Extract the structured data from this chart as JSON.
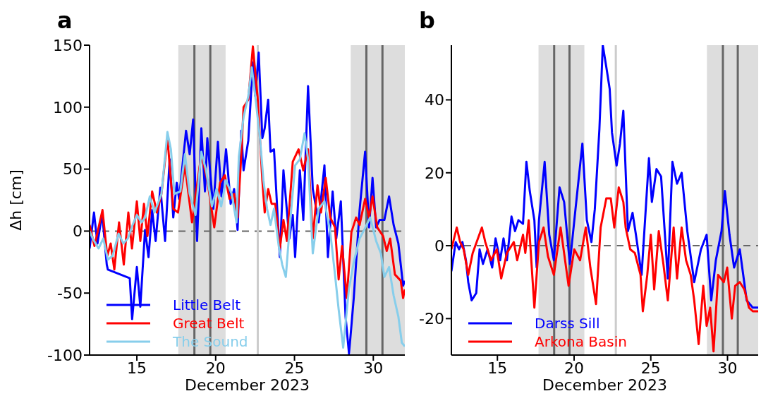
{
  "chart_data": [
    {
      "type": "line",
      "title": "a",
      "xlabel": "December 2023",
      "ylabel": "Δh [cm]",
      "xlim": [
        12,
        32
      ],
      "xticks": [
        15,
        20,
        25,
        30
      ],
      "ylim": [
        -100,
        150
      ],
      "yticks": [
        -100,
        -50,
        0,
        50,
        100,
        150
      ],
      "grid": false,
      "legend": "bottom left",
      "marker": "none",
      "line_style": "solid",
      "bands": [
        {
          "axis": "x",
          "from": 17.63,
          "to": 20.63,
          "color": "#dddddd"
        },
        {
          "axis": "x",
          "from": 28.57,
          "to": 32,
          "color": "#dddddd"
        }
      ],
      "ref_lines": [
        {
          "axis": "y",
          "value": 0,
          "color": "#666666",
          "line_style": "dashed"
        },
        {
          "axis": "x",
          "value": 18.65,
          "color": "#666666",
          "line_style": "solid"
        },
        {
          "axis": "x",
          "value": 19.66,
          "color": "#666666",
          "line_style": "solid"
        },
        {
          "axis": "x",
          "value": 22.67,
          "color": "#cccccc",
          "line_style": "solid"
        },
        {
          "axis": "x",
          "value": 29.56,
          "color": "#666666",
          "line_style": "solid"
        },
        {
          "axis": "x",
          "value": 30.58,
          "color": "#666666",
          "line_style": "solid"
        }
      ],
      "series": [
        {
          "name": "Little Belt",
          "color": "#0000ff",
          "x": [
            12,
            12.28,
            12.5,
            12.8,
            13.09,
            13.16,
            14.55,
            14.7,
            15,
            15.22,
            15.52,
            15.74,
            15.97,
            16.19,
            16.49,
            16.79,
            17.08,
            17.31,
            17.53,
            17.68,
            18.12,
            18.35,
            18.57,
            18.82,
            19.09,
            19.32,
            19.47,
            19.85,
            20.14,
            20.37,
            20.66,
            20.95,
            21.17,
            21.39,
            21.62,
            21.77,
            22.07,
            22.36,
            22.51,
            22.73,
            22.96,
            23.11,
            23.33,
            23.48,
            23.7,
            24.07,
            24.3,
            24.67,
            24.89,
            25.04,
            25.34,
            25.56,
            25.86,
            26.16,
            26.53,
            26.9,
            27.12,
            27.42,
            27.65,
            27.94,
            28.24,
            28.46,
            28.76,
            29.13,
            29.48,
            29.73,
            29.95,
            30.18,
            30.4,
            30.7,
            31,
            31.29,
            31.59,
            31.89,
            32
          ],
          "values": [
            -14,
            15,
            -10,
            14,
            -27,
            -31,
            -38,
            -71,
            -29,
            -61,
            1,
            -21,
            17,
            -8,
            35,
            -8,
            58,
            11,
            39,
            26,
            81,
            62,
            90,
            -8,
            83,
            32,
            75,
            18,
            72,
            28,
            66,
            22,
            34,
            1,
            81,
            49,
            73,
            136,
            109,
            144,
            75,
            83,
            106,
            64,
            66,
            -21,
            49,
            -6,
            13,
            -21,
            49,
            9,
            117,
            34,
            7,
            53,
            -21,
            32,
            -6,
            24,
            -69,
            -99,
            -54,
            17,
            64,
            3,
            43,
            3,
            9,
            9,
            28,
            5,
            -10,
            -44,
            -40
          ]
        },
        {
          "name": "Great Belt",
          "color": "#ff0000",
          "x": [
            12,
            12.31,
            12.82,
            13.12,
            13.34,
            13.57,
            13.87,
            14.17,
            14.46,
            14.69,
            15,
            15.22,
            15.45,
            15.67,
            15.97,
            16.27,
            16.56,
            16.94,
            17.31,
            17.61,
            18.05,
            18.5,
            19.09,
            19.47,
            19.91,
            20.28,
            20.58,
            20.88,
            21.17,
            21.39,
            21.62,
            21.77,
            22.07,
            22.36,
            22.66,
            22.96,
            23.11,
            23.33,
            23.55,
            23.78,
            24.07,
            24.3,
            24.52,
            24.89,
            25.26,
            25.56,
            25.86,
            26.16,
            26.46,
            26.68,
            26.98,
            27.27,
            27.57,
            27.8,
            28.02,
            28.32,
            28.61,
            28.91,
            29.13,
            29.48,
            29.73,
            29.95,
            30.25,
            30.62,
            30.85,
            31.07,
            31.37,
            31.74,
            31.89,
            32
          ],
          "values": [
            5,
            -12,
            17,
            -20,
            -10,
            -31,
            7,
            -27,
            15,
            -14,
            24,
            -8,
            22,
            -4,
            32,
            15,
            30,
            75,
            18,
            15,
            53,
            7,
            62,
            41,
            3,
            39,
            45,
            26,
            30,
            11,
            60,
            100,
            106,
            149,
            108,
            41,
            15,
            34,
            22,
            22,
            -14,
            9,
            -8,
            56,
            66,
            49,
            66,
            -6,
            37,
            15,
            43,
            11,
            3,
            -39,
            -12,
            -54,
            -1,
            11,
            5,
            26,
            11,
            28,
            3,
            -4,
            -16,
            -6,
            -35,
            -40,
            -54,
            -47
          ]
        },
        {
          "name": "The Sound",
          "color": "#87ceeb",
          "x": [
            12,
            12.2,
            12.57,
            12.87,
            13.16,
            13.46,
            13.84,
            14.14,
            14.43,
            14.73,
            15,
            15.3,
            15.52,
            15.82,
            16.12,
            16.56,
            16.94,
            17.16,
            17.38,
            17.76,
            18.05,
            18.35,
            18.72,
            19.09,
            19.39,
            19.76,
            20.06,
            20.35,
            20.65,
            21.02,
            21.32,
            21.47,
            21.77,
            22.07,
            22.29,
            22.51,
            22.81,
            23.03,
            23.26,
            23.48,
            23.7,
            24,
            24.22,
            24.45,
            24.67,
            25.04,
            25.34,
            25.64,
            25.86,
            26.16,
            26.53,
            26.9,
            27.27,
            27.57,
            27.8,
            28.09,
            28.46,
            28.76,
            29.13,
            29.5,
            29.8,
            30.18,
            30.48,
            30.7,
            31,
            31.29,
            31.59,
            31.81,
            32
          ],
          "values": [
            0,
            -6,
            -14,
            -6,
            -23,
            -20,
            -2,
            -10,
            -6,
            5,
            13,
            7,
            11,
            28,
            15,
            30,
            80,
            66,
            30,
            32,
            62,
            30,
            13,
            64,
            49,
            20,
            34,
            20,
            41,
            30,
            7,
            60,
            92,
            109,
            132,
            109,
            75,
            41,
            18,
            5,
            18,
            -12,
            -27,
            -37,
            -1,
            53,
            58,
            79,
            58,
            -18,
            18,
            24,
            -1,
            -35,
            -63,
            -94,
            -46,
            -25,
            -6,
            3,
            11,
            -8,
            -18,
            -37,
            -29,
            -52,
            -69,
            -90,
            -93
          ]
        }
      ]
    },
    {
      "type": "line",
      "title": "b",
      "xlabel": "December 2023",
      "xlim": [
        12,
        32
      ],
      "xticks": [
        15,
        20,
        25,
        30
      ],
      "ylim": [
        -30,
        55
      ],
      "yticks": [
        -20,
        0,
        20,
        40
      ],
      "grid": false,
      "legend": "bottom left",
      "marker": "none",
      "line_style": "solid",
      "bands": [
        {
          "axis": "x",
          "from": 17.68,
          "to": 20.67,
          "color": "#dddddd"
        },
        {
          "axis": "x",
          "from": 28.66,
          "to": 32,
          "color": "#dddddd"
        }
      ],
      "ref_lines": [
        {
          "axis": "y",
          "value": 0,
          "color": "#666666",
          "line_style": "dashed"
        },
        {
          "axis": "x",
          "value": 18.7,
          "color": "#666666",
          "line_style": "solid"
        },
        {
          "axis": "x",
          "value": 19.7,
          "color": "#666666",
          "line_style": "solid"
        },
        {
          "axis": "x",
          "value": 22.72,
          "color": "#cccccc",
          "line_style": "solid"
        },
        {
          "axis": "x",
          "value": 29.7,
          "color": "#666666",
          "line_style": "solid"
        },
        {
          "axis": "x",
          "value": 30.67,
          "color": "#666666",
          "line_style": "solid"
        }
      ],
      "series": [
        {
          "name": "Darss Sill",
          "color": "#0000ff",
          "x": [
            12,
            12.28,
            12.5,
            12.72,
            12.95,
            13.1,
            13.32,
            13.62,
            13.84,
            14.06,
            14.36,
            14.66,
            14.88,
            15.18,
            15.4,
            15.62,
            15.92,
            16.15,
            16.37,
            16.67,
            16.89,
            17.11,
            17.41,
            17.56,
            17.71,
            18.08,
            18.38,
            18.68,
            19.05,
            19.35,
            19.72,
            20.09,
            20.54,
            20.83,
            21.13,
            21.35,
            21.65,
            21.87,
            22.1,
            22.32,
            22.47,
            22.77,
            22.99,
            23.21,
            23.51,
            23.81,
            24.03,
            24.4,
            24.7,
            24.88,
            25.07,
            25.37,
            25.67,
            26.11,
            26.41,
            26.71,
            27.01,
            27.38,
            27.83,
            28.27,
            28.64,
            28.94,
            29.24,
            29.61,
            29.83,
            30.13,
            30.43,
            30.8,
            31.25,
            31.65,
            32
          ],
          "values": [
            -7,
            1,
            -1,
            1,
            -4,
            -10,
            -15,
            -13,
            -1,
            -5,
            -1,
            -6,
            2,
            -4,
            2,
            -4,
            8,
            4,
            7,
            6,
            23,
            15,
            7,
            -6,
            7,
            23,
            3,
            -4,
            16,
            12,
            -5,
            10,
            28,
            7,
            1,
            10,
            32,
            55,
            49,
            43,
            31,
            22,
            28,
            37,
            4,
            9,
            3,
            -8,
            12,
            24,
            12,
            21,
            19,
            -9,
            23,
            17,
            20,
            4,
            -10,
            -1,
            3,
            -15,
            -4,
            4,
            15,
            3,
            -6,
            -1,
            -15,
            -17,
            -17
          ]
        },
        {
          "name": "Arkona Basin",
          "color": "#ff0000",
          "x": [
            12,
            12.35,
            12.57,
            12.8,
            13.1,
            13.39,
            13.99,
            14.21,
            14.58,
            14.96,
            15.25,
            15.62,
            16.07,
            16.29,
            16.67,
            16.82,
            17.04,
            17.41,
            17.71,
            18.01,
            18.3,
            18.68,
            19.12,
            19.64,
            20.01,
            20.39,
            20.76,
            21.06,
            21.43,
            21.73,
            22.1,
            22.39,
            22.62,
            22.91,
            23.21,
            23.36,
            23.66,
            23.96,
            24.33,
            24.48,
            24.77,
            25,
            25.22,
            25.52,
            25.82,
            26.11,
            26.49,
            26.71,
            27.01,
            27.3,
            27.6,
            27.83,
            28.12,
            28.42,
            28.64,
            28.87,
            29.09,
            29.39,
            29.76,
            29.98,
            30.28,
            30.5,
            30.8,
            31.1,
            31.4,
            31.65,
            32
          ],
          "values": [
            -1,
            5,
            1,
            -1,
            -8,
            -2,
            5,
            1,
            -4,
            -1,
            -9,
            -2,
            1,
            -4,
            3,
            -2,
            7,
            -17,
            1,
            5,
            -3,
            -8,
            5,
            -11,
            -1,
            -4,
            5,
            -6,
            -16,
            5,
            13,
            13,
            5,
            16,
            12,
            5,
            -1,
            -2,
            -8,
            -18,
            -8,
            3,
            -12,
            4,
            -5,
            -15,
            5,
            -9,
            5,
            -4,
            -8,
            -15,
            -27,
            -11,
            -22,
            -17,
            -29,
            -8,
            -10,
            -6,
            -20,
            -11,
            -10,
            -12,
            -17,
            -18,
            -18
          ]
        }
      ]
    }
  ]
}
